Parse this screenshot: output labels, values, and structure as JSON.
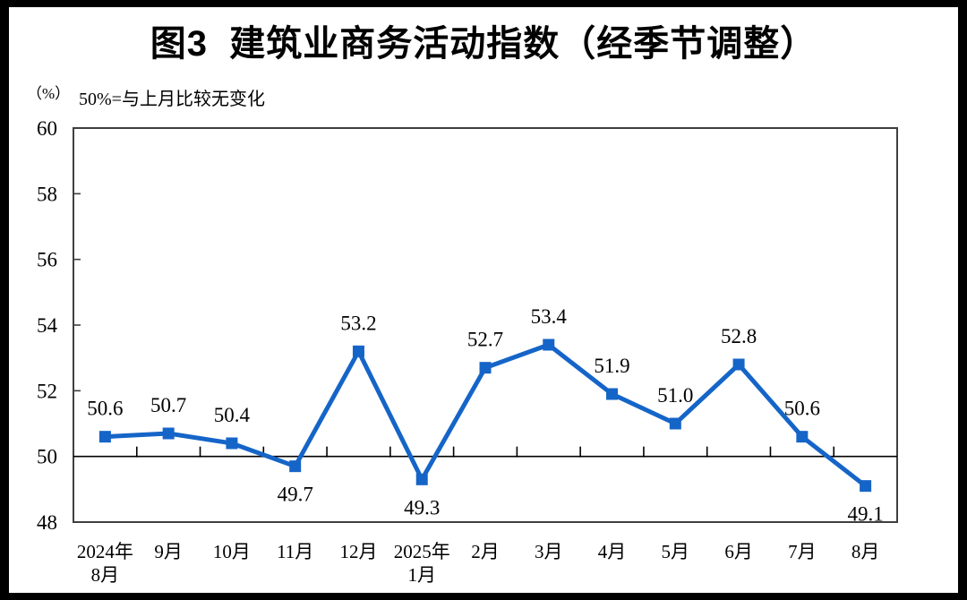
{
  "header": {
    "title": "图3  建筑业商务活动指数（经季节调整）"
  },
  "axis_notes": {
    "unit": "（%）",
    "note": "50%=与上月比较无变化"
  },
  "chart_data": {
    "type": "line",
    "title": "图3  建筑业商务活动指数（经季节调整）",
    "ylabel": "（%）",
    "annotation": "50%=与上月比较无变化",
    "categories": [
      "2024年\n8月",
      "9月",
      "10月",
      "11月",
      "12月",
      "2025年\n1月",
      "2月",
      "3月",
      "4月",
      "5月",
      "6月",
      "7月",
      "8月"
    ],
    "values": [
      50.6,
      50.7,
      50.4,
      49.7,
      53.2,
      49.3,
      52.7,
      53.4,
      51.9,
      51.0,
      52.8,
      50.6,
      49.1
    ],
    "data_label_side": [
      "above",
      "above",
      "above",
      "below",
      "above",
      "below",
      "above",
      "above",
      "above",
      "above",
      "above",
      "above",
      "below"
    ],
    "ylim": [
      48,
      60
    ],
    "ytick_step": 2,
    "yticks": [
      48,
      50,
      52,
      54,
      56,
      58,
      60
    ],
    "reference_line": 50,
    "grid": false,
    "legend": "none",
    "line_color": "#1565C8",
    "axis_color": "#3f3f3f",
    "text_color": "#000000",
    "frame_color": "#000000",
    "background": "#ffffff"
  }
}
